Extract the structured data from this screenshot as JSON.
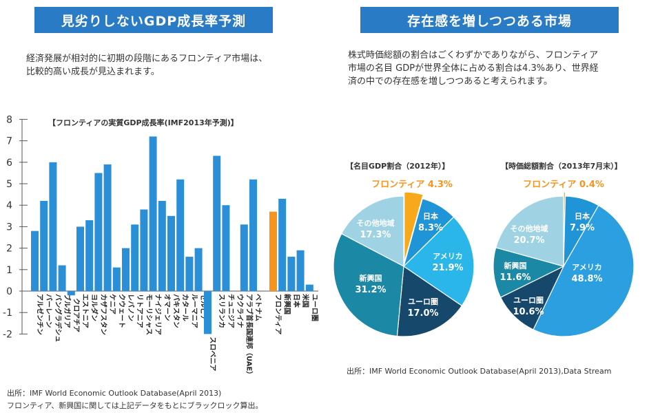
{
  "left": {
    "banner": "見劣りしないGDP成長率予測",
    "desc_lines": [
      "経済発展が相対的に初期の段階にあるフロンティア市場は、",
      "比較的高い成長が見込まれます。"
    ],
    "source_lines": [
      "出所：IMF World Economic Outlook Database(April 2013)",
      "フロンティア、新興国に関しては上記データをもとにブラックロック算出。"
    ]
  },
  "right": {
    "banner": "存在感を増しつつある市場",
    "desc_lines": [
      "株式時価総額の割合はごくわずかでありながら、フロンティア",
      "市場の名目 GDPが世界全体に占める割合は4.3%あり、世界経",
      "済の中での存在感を増しつつあると考えられます。"
    ],
    "source": "出所：IMF World Economic Outlook Database(April 2013),Data Stream"
  },
  "colors": {
    "bar": "#2a8fd6",
    "highlight": "#f7941d",
    "banner": "#2a7bc6"
  },
  "chart_data": [
    {
      "type": "bar",
      "title": "【フロンティアの実質GDP成長率(IMF2013年予測)】",
      "ylim": [
        -2,
        8
      ],
      "yticks": [
        8,
        7,
        6,
        5,
        4,
        3,
        2,
        1,
        0,
        -1,
        -2
      ],
      "groups": [
        {
          "categories": [
            "アルゼンチン",
            "バーレーン",
            "バングラデシュ",
            "ブルガリア",
            "クロアチア",
            "エストニア",
            "ヨルダン",
            "カザフスタン",
            "ケニア",
            "クウェート",
            "レバノン",
            "リトアニア",
            "モーリシャス",
            "ナイジェリア",
            "オマーン",
            "パキスタン",
            "カタール",
            "ルーマニア",
            "セルビア"
          ],
          "values": [
            2.8,
            4.2,
            6.0,
            1.2,
            -0.2,
            3.0,
            3.3,
            5.5,
            5.9,
            1.1,
            2.0,
            3.1,
            3.8,
            7.2,
            4.2,
            3.5,
            5.2,
            1.6,
            2.0
          ]
        },
        {
          "categories": [
            "スロベニア",
            "スリランカ",
            "チュニジア",
            "ウクライナ",
            "アラブ首長国連邦（UAE）",
            "ベトナム"
          ],
          "values": [
            -2.0,
            6.3,
            4.0,
            0.0,
            3.1,
            5.2
          ]
        },
        {
          "categories": [
            "フロンティア",
            "新興国",
            "日本",
            "米国",
            "ユーロ圏"
          ],
          "values": [
            3.7,
            4.3,
            1.6,
            1.9,
            0.3
          ],
          "highlight": [
            "フロンティア"
          ]
        }
      ]
    },
    {
      "type": "pie",
      "title": "【名目GDP割合（2012年）】",
      "slices": [
        {
          "label": "フロンティア",
          "value": 4.3,
          "display": "4.3%",
          "color": "#f7a81b"
        },
        {
          "label": "日本",
          "value": 8.3,
          "display": "8.3%",
          "color": "#1f94d6"
        },
        {
          "label": "アメリカ",
          "value": 21.9,
          "display": "21.9%",
          "color": "#2bb6ea"
        },
        {
          "label": "ユーロ圏",
          "value": 17.0,
          "display": "17.0%",
          "color": "#16486c"
        },
        {
          "label": "新興国",
          "value": 31.2,
          "display": "31.2%",
          "color": "#1b89a5"
        },
        {
          "label": "その他地域",
          "value": 17.3,
          "display": "17.3%",
          "color": "#9fd3e4"
        }
      ]
    },
    {
      "type": "pie",
      "title": "【時価総額割合（2013年7月末）】",
      "slices": [
        {
          "label": "フロンティア",
          "value": 0.4,
          "display": "0.4%",
          "color": "#f7a81b"
        },
        {
          "label": "日本",
          "value": 7.9,
          "display": "7.9%",
          "color": "#1f94d6"
        },
        {
          "label": "アメリカ",
          "value": 48.8,
          "display": "48.8%",
          "color": "#2b9fe0"
        },
        {
          "label": "ユーロ圏",
          "value": 10.6,
          "display": "10.6%",
          "color": "#16486c"
        },
        {
          "label": "新興国",
          "value": 11.6,
          "display": "11.6%",
          "color": "#1b89a5"
        },
        {
          "label": "その他地域",
          "value": 20.7,
          "display": "20.7%",
          "color": "#9fd3e4"
        }
      ]
    }
  ]
}
